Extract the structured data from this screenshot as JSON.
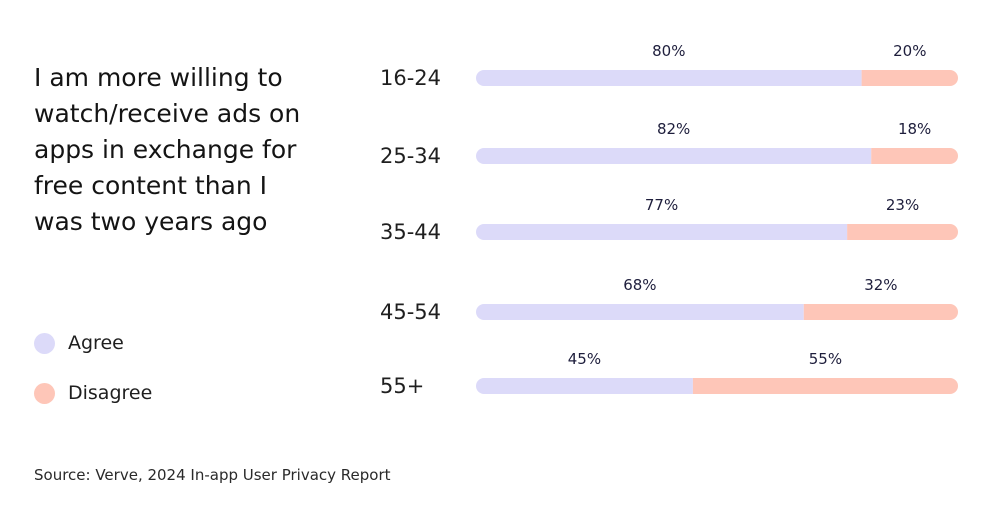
{
  "title": "I am more willing to\nwatch/receive ads on\napps in exchange for\nfree content than I\nwas two years ago",
  "legend": {
    "items": [
      {
        "label": "Agree",
        "color": "#dcdaf9"
      },
      {
        "label": "Disagree",
        "color": "#fec6b8"
      }
    ]
  },
  "source": "Source: Verve, 2024 In-app User Privacy Report",
  "chart_data": {
    "type": "bar",
    "orientation": "horizontal",
    "stacked": true,
    "categories": [
      "16-24",
      "25-34",
      "35-44",
      "45-54",
      "55+"
    ],
    "series": [
      {
        "name": "Agree",
        "values": [
          80,
          82,
          77,
          68,
          45
        ],
        "color": "#dcdaf9"
      },
      {
        "name": "Disagree",
        "values": [
          20,
          18,
          23,
          32,
          55
        ],
        "color": "#fec6b8"
      }
    ],
    "value_labels": {
      "Agree": [
        "80%",
        "82%",
        "77%",
        "68%",
        "45%"
      ],
      "Disagree": [
        "20%",
        "18%",
        "23%",
        "32%",
        "55%"
      ]
    },
    "title": "I am more willing to watch/receive ads on apps in exchange for free content than I was two years ago",
    "xlim": [
      0,
      100
    ],
    "grid": false,
    "legend_position": "left"
  }
}
